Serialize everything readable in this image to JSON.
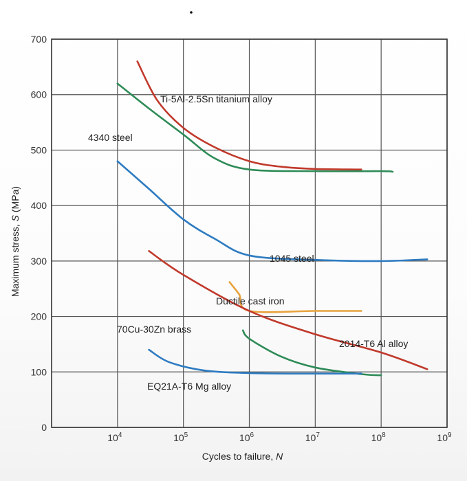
{
  "chart_data": {
    "type": "line",
    "xlabel_prefix": "Cycles to failure, ",
    "xlabel_var": "N",
    "ylabel_prefix": "Maximum stress, ",
    "ylabel_var": "S",
    "ylabel_suffix": " (MPa)",
    "x_scale": "log",
    "xlim": [
      1000,
      1000000000
    ],
    "ylim": [
      0,
      700
    ],
    "x_ticks": [
      {
        "value": 10000,
        "mant": "10",
        "exp": "4"
      },
      {
        "value": 100000,
        "mant": "10",
        "exp": "5"
      },
      {
        "value": 1000000,
        "mant": "10",
        "exp": "6"
      },
      {
        "value": 10000000,
        "mant": "10",
        "exp": "7"
      },
      {
        "value": 100000000,
        "mant": "10",
        "exp": "8"
      },
      {
        "value": 1000000000,
        "mant": "10",
        "exp": "9"
      }
    ],
    "y_ticks": [
      0,
      100,
      200,
      300,
      400,
      500,
      600,
      700
    ],
    "grid": true,
    "series": [
      {
        "name": "Ti-5Al-2.5Sn titanium alloy",
        "color": "#c0392b",
        "x": [
          20000,
          40000,
          100000,
          300000,
          1000000,
          3000000,
          10000000,
          50000000
        ],
        "y": [
          660,
          590,
          540,
          505,
          480,
          470,
          466,
          465
        ]
      },
      {
        "name": "4340 steel",
        "color": "#2e8b57",
        "x": [
          10000,
          30000,
          100000,
          300000,
          1000000,
          10000000,
          100000000,
          150000000
        ],
        "y": [
          620,
          575,
          528,
          485,
          465,
          462,
          462,
          461
        ]
      },
      {
        "name": "1045 steel",
        "color": "#2e7bc1",
        "x": [
          10000,
          30000,
          100000,
          300000,
          1000000,
          10000000,
          100000000,
          500000000
        ],
        "y": [
          480,
          430,
          375,
          340,
          310,
          302,
          300,
          303
        ]
      },
      {
        "name": "Ductile cast iron",
        "color": "#e8a23c",
        "x": [
          500000,
          700000,
          1000000,
          10000000,
          50000000
        ],
        "y": [
          262,
          240,
          210,
          210,
          210
        ]
      },
      {
        "name": "2014-T6 Al alloy",
        "color": "#c0392b",
        "x": [
          30000,
          100000,
          1000000,
          10000000,
          100000000,
          500000000
        ],
        "y": [
          318,
          275,
          210,
          168,
          135,
          105
        ]
      },
      {
        "name": "70Cu-30Zn brass",
        "color": "#2e8b57",
        "x": [
          800000,
          1000000,
          3000000,
          10000000,
          50000000,
          100000000
        ],
        "y": [
          175,
          160,
          128,
          108,
          96,
          94
        ]
      },
      {
        "name": "EQ21A-T6 Mg alloy",
        "color": "#2e7bc1",
        "x": [
          30000,
          60000,
          200000,
          1000000,
          10000000,
          50000000
        ],
        "y": [
          140,
          118,
          103,
          98,
          97,
          97
        ]
      }
    ],
    "labels": [
      {
        "text": "Ti-5Al-2.5Sn titanium alloy"
      },
      {
        "text": "4340 steel"
      },
      {
        "text": "1045 steel"
      },
      {
        "text": "Ductile cast iron"
      },
      {
        "text": "2014-T6 Al alloy"
      },
      {
        "text": "70Cu-30Zn brass"
      },
      {
        "text": "EQ21A-T6 Mg alloy"
      }
    ]
  }
}
